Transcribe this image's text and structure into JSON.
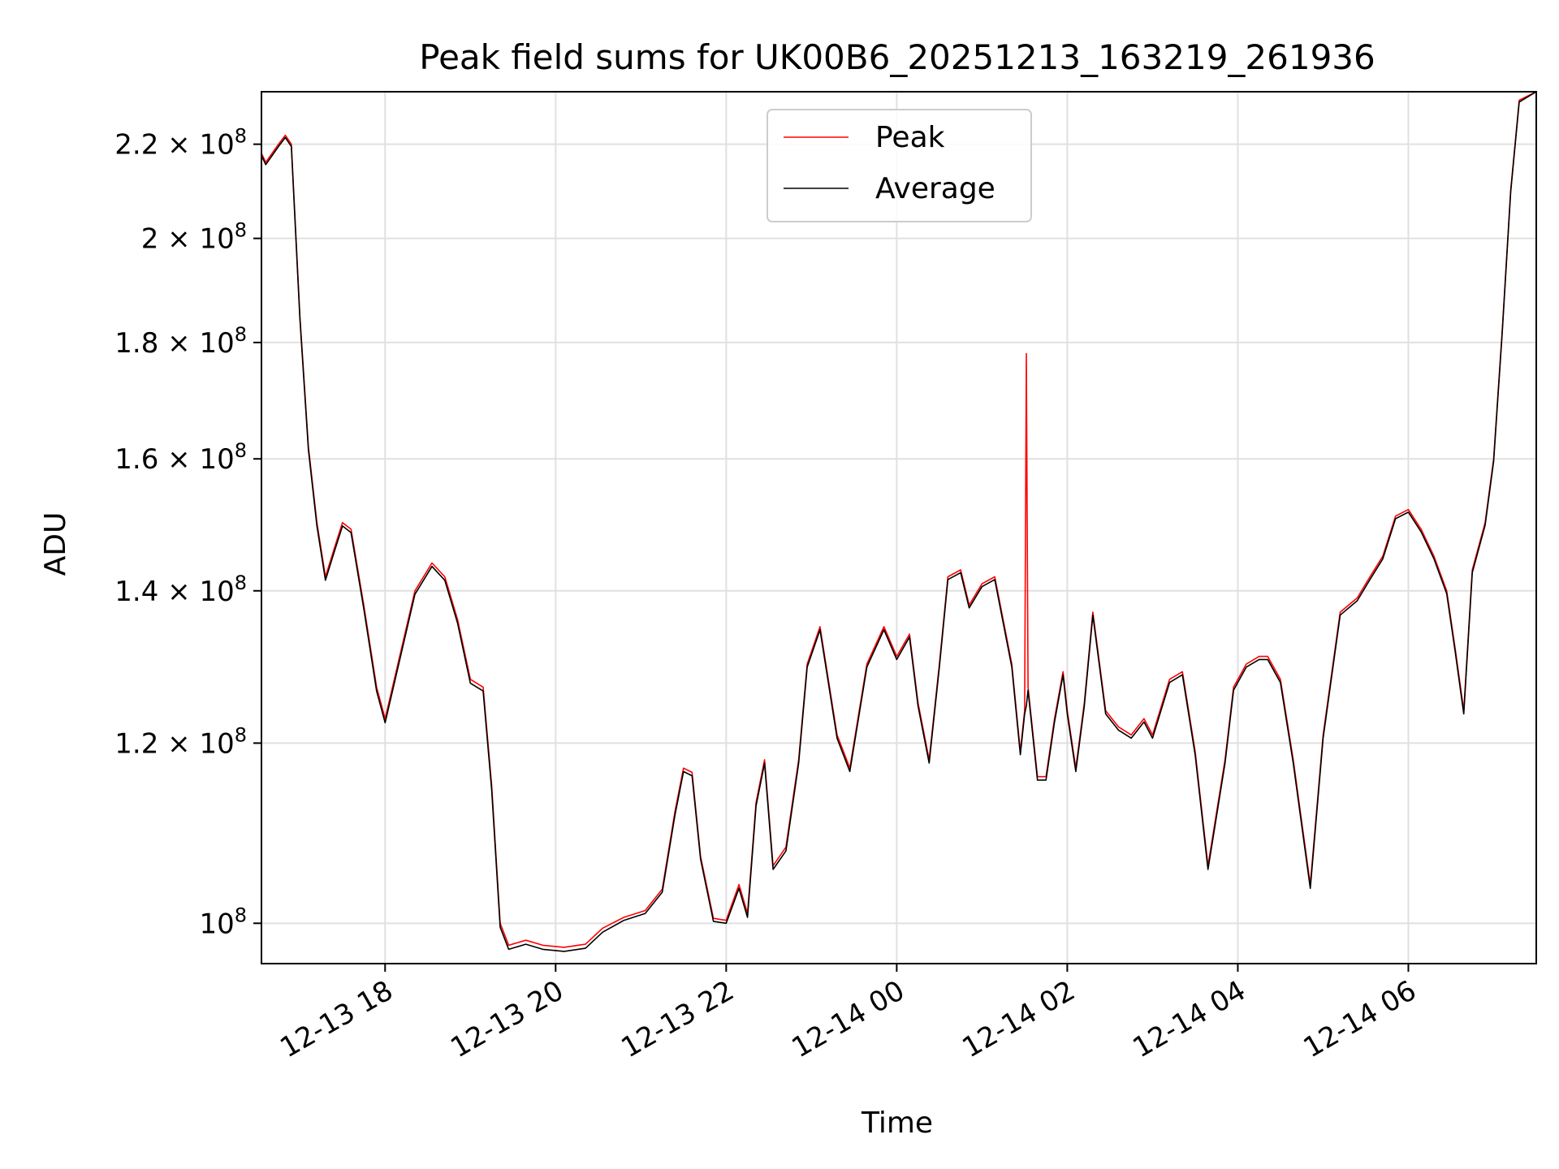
{
  "chart_data": {
    "type": "line",
    "title": "Peak field sums for UK00B6_20251213_163219_261936",
    "xlabel": "Time",
    "ylabel": "ADU",
    "y_scale": "log",
    "grid": true,
    "legend_position": "top-center",
    "x_unit": "hours since 2025-12-13 00:00",
    "xlim": [
      16.55,
      31.5
    ],
    "ylim": [
      96000000,
      232000000
    ],
    "x_ticks": [
      {
        "value": 18,
        "label": "12-13 18"
      },
      {
        "value": 20,
        "label": "12-13 20"
      },
      {
        "value": 22,
        "label": "12-13 22"
      },
      {
        "value": 24,
        "label": "12-14 00"
      },
      {
        "value": 26,
        "label": "12-14 02"
      },
      {
        "value": 28,
        "label": "12-14 04"
      },
      {
        "value": 30,
        "label": "12-14 06"
      }
    ],
    "y_ticks": [
      {
        "value": 100000000,
        "mantissa": "",
        "exponent": "8",
        "label": "10^8"
      },
      {
        "value": 120000000,
        "mantissa": "1.2",
        "exponent": "8",
        "label": "1.2×10^8"
      },
      {
        "value": 140000000,
        "mantissa": "1.4",
        "exponent": "8",
        "label": "1.4×10^8"
      },
      {
        "value": 160000000,
        "mantissa": "1.6",
        "exponent": "8",
        "label": "1.6×10^8"
      },
      {
        "value": 180000000,
        "mantissa": "1.8",
        "exponent": "8",
        "label": "1.8×10^8"
      },
      {
        "value": 200000000,
        "mantissa": "2",
        "exponent": "8",
        "label": "2×10^8"
      },
      {
        "value": 220000000,
        "mantissa": "2.2",
        "exponent": "8",
        "label": "2.2×10^8"
      }
    ],
    "series": [
      {
        "name": "Peak",
        "color": "#ff0000",
        "points": [
          [
            16.55,
            218
          ],
          [
            16.6,
            216
          ],
          [
            16.75,
            220
          ],
          [
            16.83,
            222
          ],
          [
            16.9,
            220
          ],
          [
            17.0,
            185
          ],
          [
            17.1,
            162
          ],
          [
            17.2,
            150
          ],
          [
            17.3,
            142
          ],
          [
            17.4,
            146
          ],
          [
            17.5,
            150
          ],
          [
            17.6,
            149
          ],
          [
            17.75,
            138
          ],
          [
            17.9,
            127
          ],
          [
            18.0,
            123
          ],
          [
            18.15,
            130
          ],
          [
            18.35,
            140
          ],
          [
            18.55,
            144
          ],
          [
            18.7,
            142
          ],
          [
            18.85,
            136
          ],
          [
            19.0,
            128
          ],
          [
            19.15,
            127
          ],
          [
            19.25,
            115
          ],
          [
            19.35,
            100
          ],
          [
            19.45,
            97.8
          ],
          [
            19.65,
            98.3
          ],
          [
            19.85,
            97.8
          ],
          [
            20.1,
            97.6
          ],
          [
            20.35,
            97.9
          ],
          [
            20.55,
            99.5
          ],
          [
            20.8,
            100.6
          ],
          [
            21.05,
            101.3
          ],
          [
            21.25,
            103.5
          ],
          [
            21.4,
            112
          ],
          [
            21.5,
            117
          ],
          [
            21.6,
            116.5
          ],
          [
            21.7,
            107
          ],
          [
            21.85,
            100.5
          ],
          [
            22.0,
            100.3
          ],
          [
            22.15,
            104
          ],
          [
            22.25,
            101
          ],
          [
            22.35,
            113
          ],
          [
            22.45,
            118
          ],
          [
            22.55,
            106
          ],
          [
            22.7,
            108
          ],
          [
            22.85,
            118
          ],
          [
            22.95,
            130
          ],
          [
            23.1,
            135
          ],
          [
            23.3,
            121
          ],
          [
            23.45,
            117
          ],
          [
            23.65,
            130
          ],
          [
            23.85,
            135
          ],
          [
            24.0,
            131
          ],
          [
            24.15,
            134
          ],
          [
            24.25,
            125
          ],
          [
            24.38,
            118
          ],
          [
            24.5,
            130
          ],
          [
            24.6,
            142
          ],
          [
            24.75,
            143
          ],
          [
            24.85,
            138
          ],
          [
            25.0,
            141
          ],
          [
            25.15,
            142
          ],
          [
            25.35,
            130
          ],
          [
            25.45,
            119
          ],
          [
            25.5,
            124
          ],
          [
            25.52,
            178
          ],
          [
            25.54,
            127
          ],
          [
            25.65,
            116
          ],
          [
            25.75,
            116
          ],
          [
            25.85,
            123
          ],
          [
            25.95,
            129
          ],
          [
            26.0,
            124
          ],
          [
            26.1,
            117
          ],
          [
            26.2,
            125
          ],
          [
            26.3,
            137
          ],
          [
            26.45,
            124
          ],
          [
            26.6,
            122
          ],
          [
            26.75,
            121
          ],
          [
            26.9,
            123
          ],
          [
            27.0,
            121
          ],
          [
            27.2,
            128
          ],
          [
            27.35,
            129
          ],
          [
            27.5,
            119
          ],
          [
            27.65,
            106
          ],
          [
            27.85,
            118
          ],
          [
            27.95,
            127
          ],
          [
            28.1,
            130
          ],
          [
            28.25,
            131
          ],
          [
            28.35,
            131
          ],
          [
            28.5,
            128
          ],
          [
            28.65,
            118
          ],
          [
            28.85,
            104
          ],
          [
            29.0,
            121
          ],
          [
            29.2,
            137
          ],
          [
            29.4,
            139
          ],
          [
            29.55,
            142
          ],
          [
            29.7,
            145
          ],
          [
            29.85,
            151
          ],
          [
            30.0,
            152
          ],
          [
            30.15,
            149
          ],
          [
            30.3,
            145
          ],
          [
            30.45,
            140
          ],
          [
            30.55,
            132
          ],
          [
            30.65,
            124
          ],
          [
            30.75,
            143
          ],
          [
            30.9,
            150
          ],
          [
            31.0,
            160
          ],
          [
            31.1,
            182
          ],
          [
            31.2,
            210
          ],
          [
            31.3,
            230
          ],
          [
            31.5,
            232
          ]
        ]
      },
      {
        "name": "Average",
        "color": "#000000",
        "points": [
          [
            16.55,
            217.5
          ],
          [
            16.6,
            215.5
          ],
          [
            16.75,
            219.5
          ],
          [
            16.83,
            221.5
          ],
          [
            16.9,
            219.5
          ],
          [
            17.0,
            184.5
          ],
          [
            17.1,
            161.5
          ],
          [
            17.2,
            149.5
          ],
          [
            17.3,
            141.5
          ],
          [
            17.4,
            145.5
          ],
          [
            17.5,
            149.5
          ],
          [
            17.6,
            148.5
          ],
          [
            17.75,
            137.5
          ],
          [
            17.9,
            126.5
          ],
          [
            18.0,
            122.5
          ],
          [
            18.15,
            129.5
          ],
          [
            18.35,
            139.5
          ],
          [
            18.55,
            143.5
          ],
          [
            18.7,
            141.5
          ],
          [
            18.85,
            135.5
          ],
          [
            19.0,
            127.5
          ],
          [
            19.15,
            126.5
          ],
          [
            19.25,
            114.5
          ],
          [
            19.35,
            99.6
          ],
          [
            19.45,
            97.4
          ],
          [
            19.65,
            97.9
          ],
          [
            19.85,
            97.4
          ],
          [
            20.1,
            97.2
          ],
          [
            20.35,
            97.5
          ],
          [
            20.55,
            99.1
          ],
          [
            20.8,
            100.3
          ],
          [
            21.05,
            101.0
          ],
          [
            21.25,
            103.2
          ],
          [
            21.4,
            111.6
          ],
          [
            21.5,
            116.6
          ],
          [
            21.6,
            116.1
          ],
          [
            21.7,
            106.7
          ],
          [
            21.85,
            100.2
          ],
          [
            22.0,
            100.0
          ],
          [
            22.15,
            103.6
          ],
          [
            22.25,
            100.6
          ],
          [
            22.35,
            112.6
          ],
          [
            22.45,
            117.6
          ],
          [
            22.55,
            105.6
          ],
          [
            22.7,
            107.6
          ],
          [
            22.85,
            117.6
          ],
          [
            22.95,
            129.6
          ],
          [
            23.1,
            134.6
          ],
          [
            23.3,
            120.6
          ],
          [
            23.45,
            116.6
          ],
          [
            23.65,
            129.6
          ],
          [
            23.85,
            134.6
          ],
          [
            24.0,
            130.6
          ],
          [
            24.15,
            133.6
          ],
          [
            24.25,
            124.6
          ],
          [
            24.38,
            117.6
          ],
          [
            24.5,
            129.6
          ],
          [
            24.6,
            141.6
          ],
          [
            24.75,
            142.6
          ],
          [
            24.85,
            137.6
          ],
          [
            25.0,
            140.6
          ],
          [
            25.15,
            141.6
          ],
          [
            25.35,
            129.6
          ],
          [
            25.45,
            118.6
          ],
          [
            25.5,
            123.6
          ],
          [
            25.52,
            124.6
          ],
          [
            25.54,
            126.6
          ],
          [
            25.65,
            115.6
          ],
          [
            25.75,
            115.6
          ],
          [
            25.85,
            122.6
          ],
          [
            25.95,
            128.6
          ],
          [
            26.0,
            123.6
          ],
          [
            26.1,
            116.6
          ],
          [
            26.2,
            124.6
          ],
          [
            26.3,
            136.6
          ],
          [
            26.45,
            123.6
          ],
          [
            26.6,
            121.6
          ],
          [
            26.75,
            120.6
          ],
          [
            26.9,
            122.6
          ],
          [
            27.0,
            120.6
          ],
          [
            27.2,
            127.6
          ],
          [
            27.35,
            128.6
          ],
          [
            27.5,
            118.6
          ],
          [
            27.65,
            105.6
          ],
          [
            27.85,
            117.6
          ],
          [
            27.95,
            126.6
          ],
          [
            28.1,
            129.6
          ],
          [
            28.25,
            130.6
          ],
          [
            28.35,
            130.6
          ],
          [
            28.5,
            127.6
          ],
          [
            28.65,
            117.6
          ],
          [
            28.85,
            103.6
          ],
          [
            29.0,
            120.6
          ],
          [
            29.2,
            136.6
          ],
          [
            29.4,
            138.6
          ],
          [
            29.55,
            141.6
          ],
          [
            29.7,
            144.6
          ],
          [
            29.85,
            150.6
          ],
          [
            30.0,
            151.6
          ],
          [
            30.15,
            148.6
          ],
          [
            30.3,
            144.6
          ],
          [
            30.45,
            139.6
          ],
          [
            30.55,
            131.6
          ],
          [
            30.65,
            123.6
          ],
          [
            30.75,
            142.6
          ],
          [
            30.9,
            149.6
          ],
          [
            31.0,
            159.6
          ],
          [
            31.1,
            181.6
          ],
          [
            31.2,
            209.6
          ],
          [
            31.3,
            229.6
          ],
          [
            31.5,
            232
          ]
        ]
      }
    ],
    "y_value_multiplier": 1000000
  }
}
